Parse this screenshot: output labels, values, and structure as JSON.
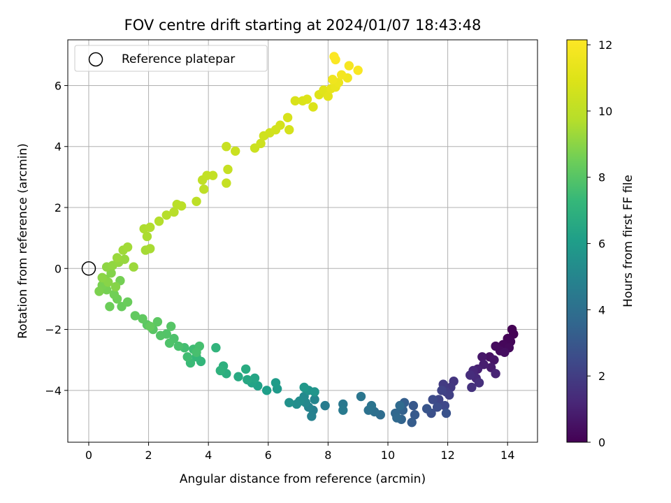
{
  "chart_data": {
    "type": "scatter",
    "title": "FOV centre drift starting at 2024/01/07 18:43:48",
    "xlabel": "Angular distance from reference (arcmin)",
    "ylabel": "Rotation from reference (arcmin)",
    "xlim": [
      -0.7,
      15.0
    ],
    "ylim": [
      -5.7,
      7.5
    ],
    "xticks": [
      0,
      2,
      4,
      6,
      8,
      10,
      12,
      14
    ],
    "yticks": [
      -4,
      -2,
      0,
      2,
      4,
      6
    ],
    "grid": true,
    "legend": {
      "position": "top-left",
      "entries": [
        "Reference platepar"
      ]
    },
    "reference_point": {
      "x": 0,
      "y": 0
    },
    "colorbar": {
      "label": "Hours from first FF file",
      "range": [
        0,
        12.15
      ],
      "ticks": [
        0,
        2,
        4,
        6,
        8,
        10,
        12
      ],
      "colormap": "viridis"
    },
    "points": [
      {
        "x": 14.15,
        "y": -2.0,
        "h": 0.0
      },
      {
        "x": 14.2,
        "y": -2.15,
        "h": 0.05
      },
      {
        "x": 14.0,
        "y": -2.3,
        "h": 0.1
      },
      {
        "x": 14.1,
        "y": -2.4,
        "h": 0.15
      },
      {
        "x": 13.85,
        "y": -2.5,
        "h": 0.2
      },
      {
        "x": 14.05,
        "y": -2.6,
        "h": 0.25
      },
      {
        "x": 13.75,
        "y": -2.7,
        "h": 0.3
      },
      {
        "x": 13.6,
        "y": -2.55,
        "h": 0.35
      },
      {
        "x": 13.9,
        "y": -2.75,
        "h": 0.4
      },
      {
        "x": 13.4,
        "y": -2.9,
        "h": 0.5
      },
      {
        "x": 13.55,
        "y": -3.0,
        "h": 0.6
      },
      {
        "x": 13.15,
        "y": -2.9,
        "h": 0.7
      },
      {
        "x": 13.45,
        "y": -3.25,
        "h": 0.8
      },
      {
        "x": 13.2,
        "y": -3.15,
        "h": 0.9
      },
      {
        "x": 13.0,
        "y": -3.3,
        "h": 1.0
      },
      {
        "x": 13.6,
        "y": -3.45,
        "h": 1.1
      },
      {
        "x": 12.85,
        "y": -3.35,
        "h": 1.2
      },
      {
        "x": 12.95,
        "y": -3.6,
        "h": 1.3
      },
      {
        "x": 12.75,
        "y": -3.5,
        "h": 1.4
      },
      {
        "x": 13.05,
        "y": -3.75,
        "h": 1.5
      },
      {
        "x": 12.8,
        "y": -3.9,
        "h": 1.6
      },
      {
        "x": 12.2,
        "y": -3.7,
        "h": 1.7
      },
      {
        "x": 12.1,
        "y": -3.9,
        "h": 1.8
      },
      {
        "x": 11.85,
        "y": -3.8,
        "h": 1.9
      },
      {
        "x": 11.95,
        "y": -4.05,
        "h": 2.0
      },
      {
        "x": 12.05,
        "y": -4.15,
        "h": 2.1
      },
      {
        "x": 11.8,
        "y": -4.0,
        "h": 2.2
      },
      {
        "x": 11.7,
        "y": -4.3,
        "h": 2.3
      },
      {
        "x": 11.9,
        "y": -4.5,
        "h": 2.4
      },
      {
        "x": 11.5,
        "y": -4.3,
        "h": 2.5
      },
      {
        "x": 11.65,
        "y": -4.55,
        "h": 2.6
      },
      {
        "x": 11.45,
        "y": -4.75,
        "h": 2.7
      },
      {
        "x": 11.95,
        "y": -4.75,
        "h": 2.8
      },
      {
        "x": 11.3,
        "y": -4.6,
        "h": 2.9
      },
      {
        "x": 10.85,
        "y": -4.5,
        "h": 3.0
      },
      {
        "x": 10.9,
        "y": -4.8,
        "h": 3.1
      },
      {
        "x": 10.8,
        "y": -5.05,
        "h": 3.2
      },
      {
        "x": 10.55,
        "y": -4.4,
        "h": 3.3
      },
      {
        "x": 10.5,
        "y": -4.65,
        "h": 3.4
      },
      {
        "x": 10.45,
        "y": -4.95,
        "h": 3.5
      },
      {
        "x": 10.25,
        "y": -4.75,
        "h": 3.6
      },
      {
        "x": 10.3,
        "y": -4.9,
        "h": 3.7
      },
      {
        "x": 10.4,
        "y": -4.5,
        "h": 3.8
      },
      {
        "x": 9.75,
        "y": -4.8,
        "h": 3.9
      },
      {
        "x": 9.55,
        "y": -4.7,
        "h": 4.0
      },
      {
        "x": 9.35,
        "y": -4.65,
        "h": 4.1
      },
      {
        "x": 9.45,
        "y": -4.5,
        "h": 4.2
      },
      {
        "x": 9.1,
        "y": -4.2,
        "h": 4.3
      },
      {
        "x": 8.5,
        "y": -4.45,
        "h": 4.4
      },
      {
        "x": 8.5,
        "y": -4.65,
        "h": 4.5
      },
      {
        "x": 7.9,
        "y": -4.5,
        "h": 4.6
      },
      {
        "x": 7.5,
        "y": -4.65,
        "h": 4.7
      },
      {
        "x": 7.45,
        "y": -4.85,
        "h": 4.8
      },
      {
        "x": 7.35,
        "y": -4.55,
        "h": 4.9
      },
      {
        "x": 7.55,
        "y": -4.3,
        "h": 5.0
      },
      {
        "x": 7.25,
        "y": -4.4,
        "h": 5.1
      },
      {
        "x": 7.2,
        "y": -4.2,
        "h": 5.2
      },
      {
        "x": 7.05,
        "y": -4.35,
        "h": 5.3
      },
      {
        "x": 6.95,
        "y": -4.45,
        "h": 5.4
      },
      {
        "x": 6.7,
        "y": -4.4,
        "h": 5.5
      },
      {
        "x": 7.35,
        "y": -4.0,
        "h": 5.6
      },
      {
        "x": 7.55,
        "y": -4.05,
        "h": 5.7
      },
      {
        "x": 7.2,
        "y": -3.9,
        "h": 5.8
      },
      {
        "x": 6.3,
        "y": -3.95,
        "h": 5.9
      },
      {
        "x": 6.25,
        "y": -3.75,
        "h": 6.0
      },
      {
        "x": 5.95,
        "y": -4.0,
        "h": 6.1
      },
      {
        "x": 5.65,
        "y": -3.85,
        "h": 6.2
      },
      {
        "x": 5.45,
        "y": -3.75,
        "h": 6.3
      },
      {
        "x": 5.55,
        "y": -3.6,
        "h": 6.4
      },
      {
        "x": 5.3,
        "y": -3.65,
        "h": 6.5
      },
      {
        "x": 5.0,
        "y": -3.55,
        "h": 6.6
      },
      {
        "x": 5.25,
        "y": -3.3,
        "h": 6.7
      },
      {
        "x": 4.6,
        "y": -3.45,
        "h": 6.8
      },
      {
        "x": 4.5,
        "y": -3.2,
        "h": 6.9
      },
      {
        "x": 4.4,
        "y": -3.35,
        "h": 7.0
      },
      {
        "x": 4.25,
        "y": -2.6,
        "h": 7.1
      },
      {
        "x": 3.75,
        "y": -3.05,
        "h": 7.2
      },
      {
        "x": 3.6,
        "y": -2.9,
        "h": 7.3
      },
      {
        "x": 3.4,
        "y": -3.1,
        "h": 7.4
      },
      {
        "x": 3.5,
        "y": -2.65,
        "h": 7.5
      },
      {
        "x": 3.3,
        "y": -2.9,
        "h": 7.55
      },
      {
        "x": 3.2,
        "y": -2.6,
        "h": 7.6
      },
      {
        "x": 3.7,
        "y": -2.55,
        "h": 7.65
      },
      {
        "x": 3.6,
        "y": -2.75,
        "h": 7.7
      },
      {
        "x": 3.0,
        "y": -2.55,
        "h": 7.75
      },
      {
        "x": 2.85,
        "y": -2.3,
        "h": 7.8
      },
      {
        "x": 2.7,
        "y": -2.45,
        "h": 7.85
      },
      {
        "x": 2.6,
        "y": -2.15,
        "h": 7.9
      },
      {
        "x": 2.4,
        "y": -2.2,
        "h": 7.95
      },
      {
        "x": 2.75,
        "y": -1.9,
        "h": 8.0
      },
      {
        "x": 2.15,
        "y": -2.0,
        "h": 8.05
      },
      {
        "x": 1.95,
        "y": -1.85,
        "h": 8.1
      },
      {
        "x": 2.3,
        "y": -1.75,
        "h": 8.15
      },
      {
        "x": 1.8,
        "y": -1.65,
        "h": 8.2
      },
      {
        "x": 1.55,
        "y": -1.55,
        "h": 8.25
      },
      {
        "x": 2.05,
        "y": -1.9,
        "h": 8.3
      },
      {
        "x": 1.1,
        "y": -1.25,
        "h": 8.35
      },
      {
        "x": 1.3,
        "y": -1.1,
        "h": 8.4
      },
      {
        "x": 0.7,
        "y": -1.25,
        "h": 8.45
      },
      {
        "x": 0.95,
        "y": -1.0,
        "h": 8.5
      },
      {
        "x": 0.85,
        "y": -0.85,
        "h": 8.55
      },
      {
        "x": 1.05,
        "y": -0.4,
        "h": 8.6
      },
      {
        "x": 0.6,
        "y": -0.7,
        "h": 8.65
      },
      {
        "x": 0.45,
        "y": -0.55,
        "h": 8.7
      },
      {
        "x": 0.35,
        "y": -0.75,
        "h": 8.75
      },
      {
        "x": 0.55,
        "y": -0.35,
        "h": 8.8
      },
      {
        "x": 0.75,
        "y": -0.15,
        "h": 8.85
      },
      {
        "x": 0.9,
        "y": -0.6,
        "h": 8.9
      },
      {
        "x": 0.65,
        "y": -0.45,
        "h": 8.95
      },
      {
        "x": 0.45,
        "y": -0.3,
        "h": 9.0
      },
      {
        "x": 0.6,
        "y": 0.05,
        "h": 9.05
      },
      {
        "x": 0.8,
        "y": 0.1,
        "h": 9.1
      },
      {
        "x": 1.0,
        "y": 0.2,
        "h": 9.15
      },
      {
        "x": 1.2,
        "y": 0.3,
        "h": 9.2
      },
      {
        "x": 0.95,
        "y": 0.35,
        "h": 9.25
      },
      {
        "x": 1.5,
        "y": 0.05,
        "h": 9.3
      },
      {
        "x": 1.15,
        "y": 0.6,
        "h": 9.35
      },
      {
        "x": 1.3,
        "y": 0.7,
        "h": 9.4
      },
      {
        "x": 1.9,
        "y": 0.6,
        "h": 9.45
      },
      {
        "x": 2.05,
        "y": 0.65,
        "h": 9.5
      },
      {
        "x": 1.95,
        "y": 1.05,
        "h": 9.55
      },
      {
        "x": 1.85,
        "y": 1.3,
        "h": 9.6
      },
      {
        "x": 2.05,
        "y": 1.35,
        "h": 9.65
      },
      {
        "x": 2.35,
        "y": 1.55,
        "h": 9.7
      },
      {
        "x": 2.6,
        "y": 1.75,
        "h": 9.75
      },
      {
        "x": 2.85,
        "y": 1.85,
        "h": 9.8
      },
      {
        "x": 2.95,
        "y": 2.1,
        "h": 9.85
      },
      {
        "x": 3.1,
        "y": 2.05,
        "h": 9.9
      },
      {
        "x": 3.6,
        "y": 2.2,
        "h": 9.95
      },
      {
        "x": 3.85,
        "y": 2.6,
        "h": 10.0
      },
      {
        "x": 3.8,
        "y": 2.9,
        "h": 10.05
      },
      {
        "x": 3.95,
        "y": 3.05,
        "h": 10.1
      },
      {
        "x": 4.15,
        "y": 3.05,
        "h": 10.15
      },
      {
        "x": 4.6,
        "y": 2.8,
        "h": 10.2
      },
      {
        "x": 4.65,
        "y": 3.25,
        "h": 10.25
      },
      {
        "x": 4.6,
        "y": 4.0,
        "h": 10.3
      },
      {
        "x": 4.9,
        "y": 3.85,
        "h": 10.35
      },
      {
        "x": 5.55,
        "y": 3.95,
        "h": 10.4
      },
      {
        "x": 5.75,
        "y": 4.1,
        "h": 10.45
      },
      {
        "x": 5.85,
        "y": 4.35,
        "h": 10.5
      },
      {
        "x": 6.05,
        "y": 4.45,
        "h": 10.55
      },
      {
        "x": 6.25,
        "y": 4.55,
        "h": 10.6
      },
      {
        "x": 6.4,
        "y": 4.7,
        "h": 10.65
      },
      {
        "x": 6.7,
        "y": 4.55,
        "h": 10.7
      },
      {
        "x": 6.65,
        "y": 4.95,
        "h": 10.75
      },
      {
        "x": 6.9,
        "y": 5.5,
        "h": 10.8
      },
      {
        "x": 7.15,
        "y": 5.5,
        "h": 10.85
      },
      {
        "x": 7.5,
        "y": 5.3,
        "h": 10.9
      },
      {
        "x": 7.3,
        "y": 5.55,
        "h": 10.95
      },
      {
        "x": 7.7,
        "y": 5.7,
        "h": 11.0
      },
      {
        "x": 7.85,
        "y": 5.85,
        "h": 11.1
      },
      {
        "x": 8.0,
        "y": 5.65,
        "h": 11.2
      },
      {
        "x": 8.1,
        "y": 5.9,
        "h": 11.3
      },
      {
        "x": 8.25,
        "y": 5.95,
        "h": 11.4
      },
      {
        "x": 8.35,
        "y": 6.1,
        "h": 11.5
      },
      {
        "x": 8.15,
        "y": 6.2,
        "h": 11.6
      },
      {
        "x": 8.65,
        "y": 6.25,
        "h": 11.7
      },
      {
        "x": 8.45,
        "y": 6.35,
        "h": 11.8
      },
      {
        "x": 8.7,
        "y": 6.65,
        "h": 11.9
      },
      {
        "x": 9.0,
        "y": 6.5,
        "h": 12.0
      },
      {
        "x": 8.25,
        "y": 6.85,
        "h": 12.05
      },
      {
        "x": 8.2,
        "y": 6.95,
        "h": 12.1
      }
    ]
  }
}
